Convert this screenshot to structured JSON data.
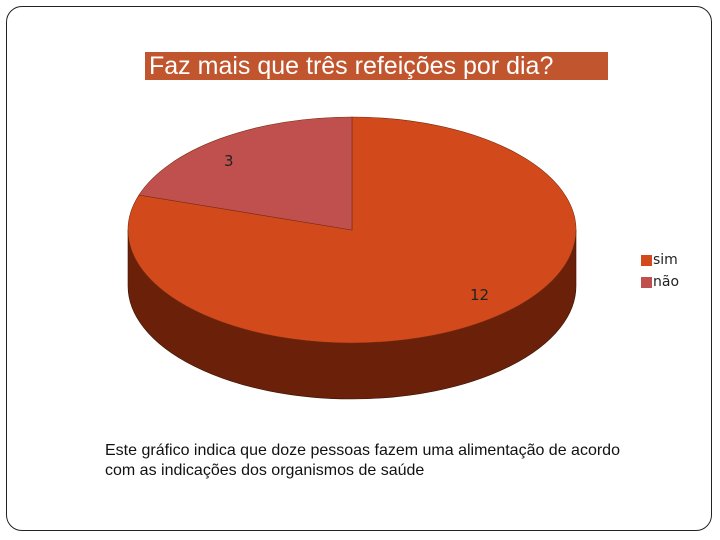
{
  "chart_data": {
    "type": "pie",
    "title": "Faz mais que três refeições por dia?",
    "categories": [
      "sim",
      "não"
    ],
    "values": [
      12,
      3
    ],
    "colors": [
      "#d24a1c",
      "#c0504d"
    ],
    "side_colors": [
      "#6b2109",
      "#6b2109"
    ],
    "legend_position": "right",
    "is_3d": true
  },
  "caption": "Este gráfico indica que doze pessoas fazem uma alimentação de acordo com as indicações dos organismos de saúde"
}
